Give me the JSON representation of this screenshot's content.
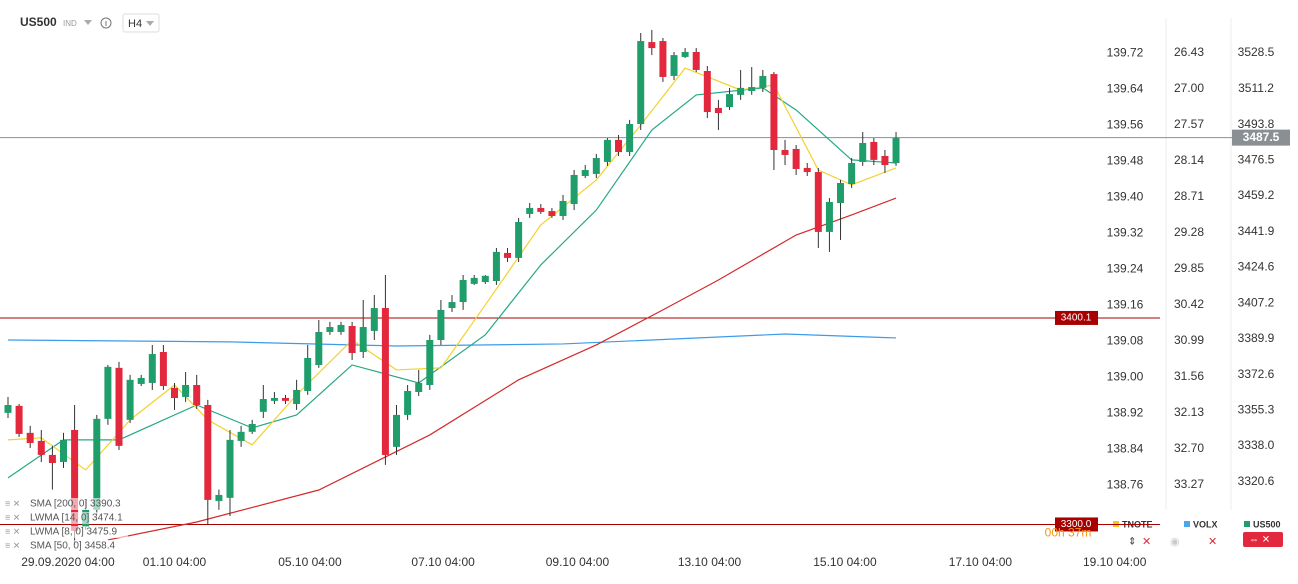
{
  "header": {
    "symbol": "US500",
    "kind": "IND",
    "timeframe": "H4"
  },
  "chart_data": {
    "type": "candlestick",
    "name": "US500",
    "up_color": "#1f9e6b",
    "down_color": "#e3273c",
    "ohlc": [
      [
        3354.1,
        3361.8,
        3351.6,
        3357.9
      ],
      [
        3357.5,
        3358.4,
        3342.4,
        3343.9
      ],
      [
        3344.4,
        3347.8,
        3337.1,
        3339.5
      ],
      [
        3340.5,
        3345.8,
        3330.3,
        3333.7
      ],
      [
        3333.7,
        3338.1,
        3316.9,
        3329.8
      ],
      [
        3330.3,
        3344.4,
        3327.4,
        3341.0
      ],
      [
        3345.8,
        3357.9,
        3290.1,
        3296.9
      ],
      [
        3298.8,
        3311.9,
        3297.4,
        3307.1
      ],
      [
        3307.1,
        3353.1,
        3304.6,
        3351.2
      ],
      [
        3351.2,
        3377.3,
        3348.3,
        3376.4
      ],
      [
        3375.9,
        3378.8,
        3336.1,
        3338.1
      ],
      [
        3350.7,
        3372.5,
        3349.2,
        3370.1
      ],
      [
        3368.1,
        3372.5,
        3367.1,
        3371.0
      ],
      [
        3368.6,
        3387.0,
        3365.2,
        3382.6
      ],
      [
        3383.6,
        3387.0,
        3365.2,
        3367.1
      ],
      [
        3366.2,
        3368.6,
        3355.5,
        3361.3
      ],
      [
        3361.8,
        3373.9,
        3359.4,
        3367.6
      ],
      [
        3367.6,
        3372.5,
        3356.0,
        3357.9
      ],
      [
        3357.9,
        3360.4,
        3299.8,
        3311.9
      ],
      [
        3311.4,
        3316.9,
        3307.1,
        3314.3
      ],
      [
        3312.9,
        3345.8,
        3304.1,
        3341.0
      ],
      [
        3340.5,
        3347.8,
        3337.6,
        3344.9
      ],
      [
        3344.9,
        3350.7,
        3343.9,
        3348.7
      ],
      [
        3354.6,
        3367.6,
        3351.6,
        3360.8
      ],
      [
        3359.9,
        3364.2,
        3358.4,
        3361.3
      ],
      [
        3361.3,
        3362.8,
        3358.4,
        3359.9
      ],
      [
        3358.4,
        3370.1,
        3355.5,
        3365.2
      ],
      [
        3364.7,
        3387.0,
        3362.8,
        3380.7
      ],
      [
        3377.3,
        3399.1,
        3375.9,
        3393.3
      ],
      [
        3393.3,
        3398.2,
        3391.9,
        3395.7
      ],
      [
        3393.3,
        3398.2,
        3391.9,
        3396.7
      ],
      [
        3396.2,
        3398.2,
        3379.7,
        3383.1
      ],
      [
        3383.6,
        3408.8,
        3380.7,
        3395.7
      ],
      [
        3393.8,
        3411.2,
        3389.4,
        3404.9
      ],
      [
        3404.9,
        3420.9,
        3328.9,
        3333.7
      ],
      [
        3337.6,
        3357.9,
        3333.7,
        3353.1
      ],
      [
        3353.1,
        3367.6,
        3350.7,
        3364.7
      ],
      [
        3364.2,
        3374.9,
        3362.3,
        3368.6
      ],
      [
        3367.6,
        3391.9,
        3365.2,
        3389.4
      ],
      [
        3389.4,
        3408.8,
        3387.0,
        3404.0
      ],
      [
        3404.9,
        3411.2,
        3403.0,
        3407.8
      ],
      [
        3407.8,
        3420.9,
        3404.0,
        3418.5
      ],
      [
        3416.6,
        3420.9,
        3416.1,
        3419.5
      ],
      [
        3417.5,
        3420.9,
        3416.6,
        3420.5
      ],
      [
        3418.0,
        3434.0,
        3416.1,
        3432.1
      ],
      [
        3431.6,
        3434.0,
        3427.2,
        3429.2
      ],
      [
        3429.2,
        3448.6,
        3427.2,
        3446.6
      ],
      [
        3450.5,
        3455.8,
        3448.6,
        3453.4
      ],
      [
        3453.4,
        3455.3,
        3450.5,
        3451.5
      ],
      [
        3451.9,
        3453.4,
        3448.6,
        3449.5
      ],
      [
        3449.5,
        3459.7,
        3447.6,
        3456.8
      ],
      [
        3455.3,
        3471.8,
        3452.4,
        3469.4
      ],
      [
        3468.9,
        3474.2,
        3467.9,
        3471.8
      ],
      [
        3469.9,
        3479.6,
        3467.9,
        3477.6
      ],
      [
        3475.7,
        3487.3,
        3473.8,
        3486.4
      ],
      [
        3486.4,
        3488.8,
        3478.6,
        3480.5
      ],
      [
        3480.5,
        3496.1,
        3478.6,
        3494.1
      ],
      [
        3494.1,
        3538.2,
        3491.2,
        3534.3
      ],
      [
        3533.8,
        3539.7,
        3527.5,
        3530.9
      ],
      [
        3534.3,
        3535.8,
        3514.5,
        3516.9
      ],
      [
        3517.4,
        3529.0,
        3515.4,
        3527.5
      ],
      [
        3526.6,
        3530.9,
        3526.1,
        3529.0
      ],
      [
        3529.0,
        3530.9,
        3519.3,
        3520.3
      ],
      [
        3519.8,
        3522.2,
        3497.0,
        3499.9
      ],
      [
        3501.9,
        3505.8,
        3491.2,
        3499.4
      ],
      [
        3502.3,
        3511.6,
        3500.9,
        3508.6
      ],
      [
        3508.2,
        3520.3,
        3505.8,
        3511.6
      ],
      [
        3510.1,
        3521.7,
        3508.2,
        3512.0
      ],
      [
        3511.6,
        3520.3,
        3509.6,
        3517.4
      ],
      [
        3518.3,
        3519.3,
        3471.8,
        3481.5
      ],
      [
        3481.5,
        3486.4,
        3474.2,
        3479.1
      ],
      [
        3482.0,
        3483.9,
        3469.4,
        3472.3
      ],
      [
        3472.8,
        3475.2,
        3468.9,
        3470.8
      ],
      [
        3470.8,
        3472.8,
        3434.0,
        3441.8
      ],
      [
        3441.8,
        3458.2,
        3432.1,
        3456.3
      ],
      [
        3455.8,
        3467.0,
        3437.9,
        3465.5
      ],
      [
        3465.0,
        3477.6,
        3463.1,
        3475.2
      ],
      [
        3475.7,
        3490.2,
        3473.8,
        3484.9
      ],
      [
        3485.4,
        3487.3,
        3474.2,
        3476.7
      ],
      [
        3478.6,
        3481.5,
        3470.4,
        3474.2
      ],
      [
        3475.2,
        3490.2,
        3473.8,
        3487.3
      ]
    ],
    "xlim": [
      -0.72,
      103.78
    ],
    "xticks": [
      {
        "value": 5.4,
        "label": "29.09.2020 04:00"
      },
      {
        "value": 15.0,
        "label": "01.10 04:00"
      },
      {
        "value": 27.2,
        "label": "05.10 04:00"
      },
      {
        "value": 39.2,
        "label": "07.10 04:00"
      },
      {
        "value": 51.3,
        "label": "09.10 04:00"
      },
      {
        "value": 63.2,
        "label": "13.10 04:00"
      },
      {
        "value": 75.4,
        "label": "15.10 04:00"
      },
      {
        "value": 87.6,
        "label": "17.10 04:00"
      },
      {
        "value": 99.7,
        "label": "19.10 04:00"
      }
    ],
    "ylim": [
      3285.2,
      3554.2
    ],
    "yticks": [
      3528.5,
      3511.2,
      3493.8,
      3476.5,
      3459.2,
      3441.9,
      3424.6,
      3407.2,
      3389.9,
      3372.6,
      3355.3,
      {
        "value": 3338.0,
        "label": "3338.0"
      },
      3320.6
    ],
    "last_price": 3487.5,
    "overlays": [
      {
        "name": "TNOTE",
        "color": "#f5c518",
        "ylim": [
          138.605,
          139.838
        ],
        "yticks": [
          139.72,
          139.64,
          139.56,
          139.48,
          {
            "value": 139.4,
            "label": "139.40"
          },
          139.32,
          139.24,
          139.16,
          139.08,
          {
            "value": 139.0,
            "label": "139.00"
          },
          138.92,
          138.84,
          138.76
        ]
      },
      {
        "name": "VOLX",
        "color": "#4aa8e8",
        "ylim": [
          34.379,
          25.591
        ],
        "yticks": [
          26.43,
          {
            "value": 27.0,
            "label": "27.00"
          },
          27.57,
          28.14,
          28.71,
          29.28,
          29.85,
          30.42,
          30.99,
          31.56,
          32.13,
          {
            "value": 32.7,
            "label": "32.70"
          },
          33.27
        ]
      }
    ],
    "levels": [
      {
        "value": 3400.1,
        "label": "3400.1"
      },
      {
        "value": 3300.0,
        "label": "3300.0"
      }
    ],
    "level_color": "#a80000",
    "countdown": "00h 37m",
    "indicators": [
      {
        "label": "SMA [200, 0] 3390.3",
        "color": "#3d9be9",
        "x": [
          0,
          20,
          35,
          50,
          60,
          70,
          80
        ],
        "values": [
          3389.4,
          3388.5,
          3386.5,
          3387.5,
          3389.9,
          3392.3,
          3390.4
        ]
      },
      {
        "label": "LWMA [14, 0] 3474.1",
        "color": "#25a886",
        "x": [
          0,
          5,
          10,
          17,
          22,
          26,
          31,
          37,
          43,
          48,
          53,
          58,
          62,
          68,
          71,
          76,
          80
        ],
        "values": [
          3322.6,
          3341.0,
          3341.0,
          3357.9,
          3346.8,
          3353.1,
          3377.3,
          3368.6,
          3391.9,
          3425.8,
          3452.4,
          3491.2,
          3508.2,
          3511.6,
          3500.9,
          3476.7,
          3475.2
        ]
      },
      {
        "label": "LWMA [8, 0] 3475.9",
        "color": "#f2d22e",
        "x": [
          0,
          3,
          7,
          11,
          15,
          18,
          22,
          26,
          31,
          35,
          39,
          43,
          48,
          53,
          57,
          61,
          66,
          69,
          73,
          76,
          80
        ],
        "values": [
          3341.0,
          3342.0,
          3326.4,
          3350.7,
          3367.6,
          3350.7,
          3338.6,
          3362.8,
          3389.4,
          3374.9,
          3375.9,
          3406.4,
          3445.2,
          3467.0,
          3493.6,
          3521.2,
          3510.6,
          3513.0,
          3471.8,
          3464.6,
          3472.8
        ]
      },
      {
        "label": "SMA [50, 0] 3458.4",
        "color": "#d42a2a",
        "x": [
          9,
          17,
          28,
          38,
          46,
          53,
          59,
          64,
          71,
          76,
          80
        ],
        "values": [
          3292.5,
          3301.2,
          3316.7,
          3343.4,
          3370.1,
          3387.0,
          3404.0,
          3418.5,
          3440.3,
          3450.0,
          3458.2
        ]
      }
    ]
  }
}
